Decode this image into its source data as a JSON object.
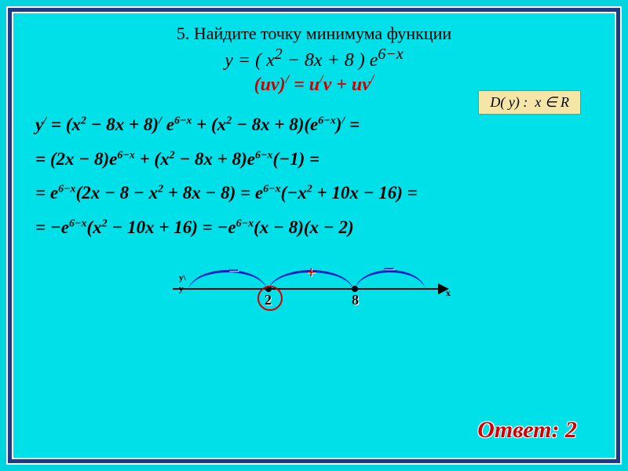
{
  "title": "5. Найдите точку минимума функции",
  "main_equation": "y = ( x² − 8x + 8 ) e⁶⁻ˣ",
  "product_rule": "(uv)′ = u′v + uv′",
  "domain": "D( y) : x ∈ R",
  "derivation": {
    "line1": "y′ = (x² − 8x + 8)′ e⁶⁻ˣ + (x² − 8x + 8)(e⁶⁻ˣ)′ =",
    "line2": "= (2x − 8)e⁶⁻ˣ + (x² − 8x + 8)e⁶⁻ˣ(−1) =",
    "line3": "= e⁶⁻ˣ(2x − 8 − x² + 8x − 8) = e⁶⁻ˣ(−x² + 10x − 16) =",
    "line4": "= −e⁶⁻ˣ(x² − 10x + 16) = −e⁶⁻ˣ(x − 8)(x − 2)"
  },
  "diagram": {
    "critical_points": [
      2,
      8
    ],
    "signs": [
      "−",
      "+",
      "−"
    ],
    "sign_colors": [
      "#0020c0",
      "#d00000",
      "#0020c0"
    ],
    "arc_color": "#0020c0",
    "circle_color": "#d00000",
    "axis_labels": {
      "x": "x",
      "y_prime": "y\\",
      "y": "y"
    },
    "minimum_point": 2
  },
  "answer_label": "Ответ: 2",
  "colors": {
    "background": "#00e0e8",
    "frame": "#1e3a8a",
    "rule_text": "#d00000",
    "domain_box_bg": "#f5e6a8",
    "answer": "#d00000"
  }
}
